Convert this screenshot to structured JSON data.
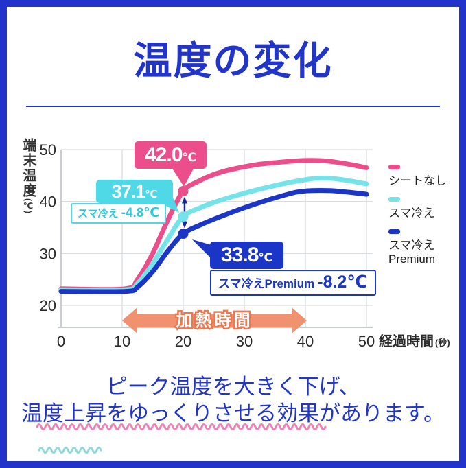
{
  "title": "温度の変化",
  "caption": {
    "line1": "ピーク温度を大きく下げ、",
    "line2": "温度上昇をゆっくりさせる効果があります。"
  },
  "chart": {
    "y_axis": {
      "title": "端末温度",
      "unit": "(℃)",
      "ticks": [
        50,
        40,
        30,
        20
      ]
    },
    "x_axis": {
      "title": "経過時間",
      "unit": "(秒)",
      "ticks": [
        0,
        10,
        20,
        30,
        40,
        50
      ]
    },
    "heating_arrow": {
      "label": "加熱時間",
      "color": "#f0916f",
      "outline": "#ec7850",
      "x_start": 10,
      "x_end": 40
    },
    "callouts": {
      "pink": {
        "value": "42.0",
        "unit": "℃",
        "color": "#eb4e8b"
      },
      "cyan": {
        "value": "37.1",
        "unit": "℃",
        "color": "#4fd8e6",
        "note_label": "スマ冷え",
        "note_delta": "-4.8℃"
      },
      "blue": {
        "value": "33.8",
        "unit": "℃",
        "color": "#1b35c7",
        "note_label": "スマ冷えPremium",
        "note_delta": "-8.2℃"
      }
    },
    "colors": {
      "frame_blue": "#2233cb",
      "title_blue": "#2135cb",
      "grid": "#d9dde0",
      "axis": "#bcc2c7",
      "tick_text": "#2b2b2b",
      "diff_arrow_navy": "#16289b",
      "wavy_pink": "#ef82b4",
      "wavy_teal": "#8fd9d8"
    }
  },
  "chart_data": {
    "type": "line",
    "title": "温度の変化",
    "xlabel": "経過時間(秒)",
    "ylabel": "端末温度(℃)",
    "xlim": [
      0,
      50
    ],
    "ylim": [
      20,
      50
    ],
    "grid": true,
    "legend_position": "right",
    "annotations": {
      "heating_time_label": "加熱時間",
      "heating_time_span_sec": [
        10,
        40
      ],
      "peak_labels": [
        {
          "series": "シートなし",
          "x": 20,
          "value_c": 42.0
        },
        {
          "series": "スマ冷え",
          "x": 20,
          "value_c": 37.1,
          "delta_vs_no_sheet_c": -4.8
        },
        {
          "series": "スマ冷え Premium",
          "x": 20,
          "value_c": 33.8,
          "delta_vs_no_sheet_c": -8.2
        }
      ]
    },
    "series": [
      {
        "name": "シートなし",
        "color": "#eb4e8b",
        "marker": {
          "x": 20,
          "y": 42.0
        },
        "points": [
          [
            0,
            23.2
          ],
          [
            10.5,
            23.2
          ],
          [
            12.5,
            25.0
          ],
          [
            15,
            30.0
          ],
          [
            17.5,
            36.5
          ],
          [
            20,
            42.0
          ],
          [
            22.5,
            43.9
          ],
          [
            25,
            45.2
          ],
          [
            28,
            46.2
          ],
          [
            32,
            47.1
          ],
          [
            36,
            47.6
          ],
          [
            40,
            47.9
          ],
          [
            43.5,
            47.8
          ],
          [
            47,
            47.2
          ],
          [
            50,
            46.5
          ]
        ]
      },
      {
        "name": "スマ冷え",
        "color": "#76e3ea",
        "marker": {
          "x": 20,
          "y": 37.1
        },
        "points": [
          [
            0,
            23.0
          ],
          [
            10.5,
            23.0
          ],
          [
            12.5,
            24.2
          ],
          [
            15,
            28.0
          ],
          [
            17.5,
            32.8
          ],
          [
            20,
            37.1
          ],
          [
            23,
            38.9
          ],
          [
            26,
            40.2
          ],
          [
            30,
            41.6
          ],
          [
            34,
            42.8
          ],
          [
            38,
            43.8
          ],
          [
            42,
            44.5
          ],
          [
            45.5,
            44.3
          ],
          [
            50,
            43.4
          ]
        ]
      },
      {
        "name": "スマ冷え Premium",
        "color": "#1b35c7",
        "marker": {
          "x": 20,
          "y": 33.8
        },
        "points": [
          [
            0,
            22.7
          ],
          [
            10.5,
            22.7
          ],
          [
            12.5,
            23.5
          ],
          [
            15,
            26.5
          ],
          [
            17.5,
            30.5
          ],
          [
            20,
            33.8
          ],
          [
            23,
            35.6
          ],
          [
            27,
            37.5
          ],
          [
            31,
            39.2
          ],
          [
            35,
            40.7
          ],
          [
            38.5,
            41.8
          ],
          [
            41,
            42.1
          ],
          [
            44,
            42.1
          ],
          [
            47,
            41.8
          ],
          [
            50,
            41.4
          ]
        ]
      }
    ]
  }
}
